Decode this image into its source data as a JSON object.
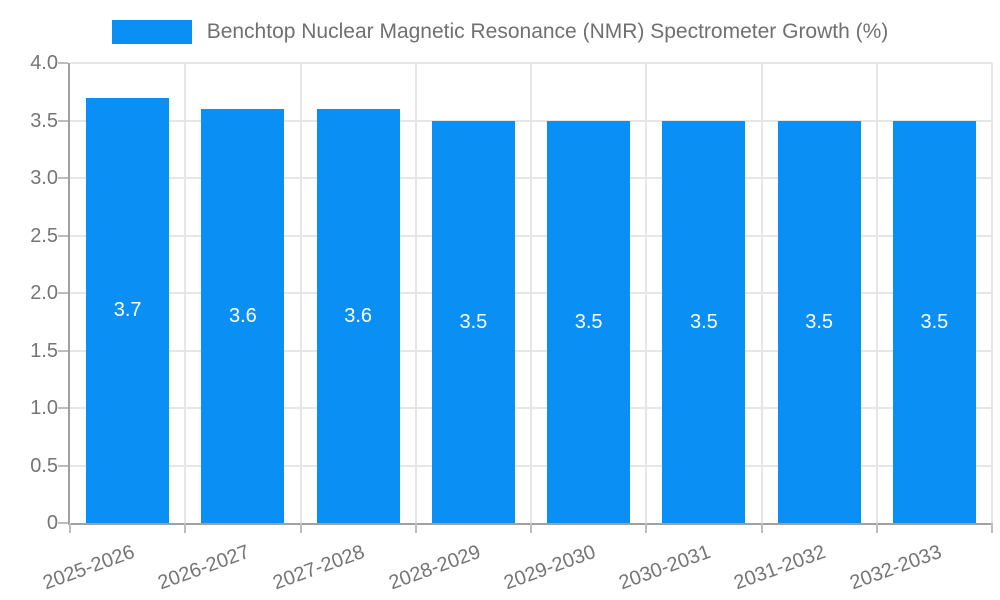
{
  "chart_data": {
    "type": "bar",
    "title": "Benchtop Nuclear Magnetic Resonance (NMR) Spectrometer Growth (%)",
    "categories": [
      "2025-2026",
      "2026-2027",
      "2027-2028",
      "2028-2029",
      "2029-2030",
      "2030-2031",
      "2031-2032",
      "2032-2033"
    ],
    "values": [
      3.7,
      3.6,
      3.6,
      3.5,
      3.5,
      3.5,
      3.5,
      3.5
    ],
    "bar_value_labels": [
      "3.7",
      "3.6",
      "3.6",
      "3.5",
      "3.5",
      "3.5",
      "3.5",
      "3.5"
    ],
    "xlabel": "",
    "ylabel": "",
    "ylim": [
      0,
      4.0
    ],
    "ytick_labels": [
      "0",
      "0.5",
      "1.0",
      "1.5",
      "2.0",
      "2.5",
      "3.0",
      "3.5",
      "4.0"
    ],
    "grid": true,
    "legend_position": "top",
    "colors": {
      "bar": "#0a90f5",
      "grid": "#e6e6e6",
      "axis": "#a0a0a0",
      "tick": "#bdbdbd",
      "tick_label": "#757575",
      "bar_label": "#ffffff",
      "legend_text": "#707070",
      "background": "#ffffff"
    }
  }
}
